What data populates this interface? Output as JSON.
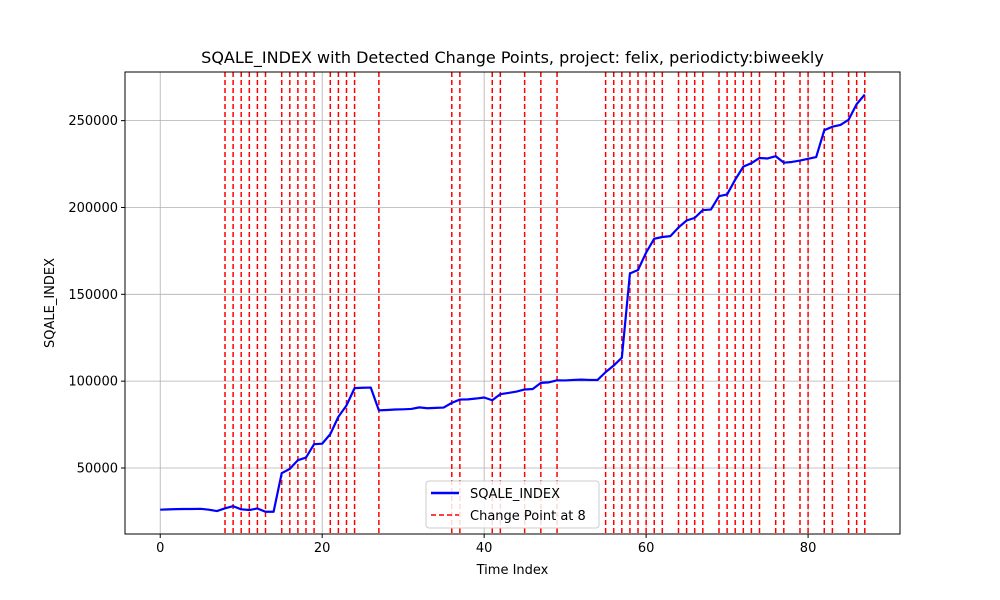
{
  "chart_data": {
    "type": "line",
    "title": "SQALE_INDEX with Detected Change Points, project: felix, periodicty:biweekly",
    "xlabel": "Time Index",
    "ylabel": "SQALE_INDEX",
    "xlim": [
      -4.35,
      91.35
    ],
    "ylim": [
      12000,
      278000
    ],
    "xticks": [
      0,
      20,
      40,
      60,
      80
    ],
    "yticks": [
      50000,
      100000,
      150000,
      200000,
      250000
    ],
    "grid": true,
    "legend_position": "lower-center",
    "series": [
      {
        "name": "SQALE_INDEX",
        "color": "#0000ff",
        "x": [
          0,
          1,
          2,
          3,
          4,
          5,
          6,
          7,
          8,
          9,
          10,
          11,
          12,
          13,
          14,
          15,
          16,
          17,
          18,
          19,
          20,
          21,
          22,
          23,
          24,
          25,
          26,
          27,
          28,
          29,
          30,
          31,
          32,
          33,
          34,
          35,
          36,
          37,
          38,
          39,
          40,
          41,
          42,
          43,
          44,
          45,
          46,
          47,
          48,
          49,
          50,
          51,
          52,
          53,
          54,
          55,
          56,
          57,
          58,
          59,
          60,
          61,
          62,
          63,
          64,
          65,
          66,
          67,
          68,
          69,
          70,
          71,
          72,
          73,
          74,
          75,
          76,
          77,
          78,
          79,
          80,
          81,
          82,
          83,
          84,
          85,
          86,
          87
        ],
        "y": [
          26000,
          26200,
          26300,
          26400,
          26400,
          26500,
          26000,
          25200,
          26800,
          28000,
          26200,
          25800,
          26700,
          24800,
          24800,
          47000,
          49500,
          54500,
          56000,
          63700,
          64000,
          69500,
          79500,
          86000,
          96000,
          96200,
          96300,
          83200,
          83400,
          83700,
          83800,
          84000,
          84900,
          84400,
          84600,
          84800,
          87500,
          89400,
          89500,
          90000,
          90600,
          89000,
          92500,
          93200,
          94000,
          95200,
          95500,
          99000,
          99300,
          100500,
          100400,
          100700,
          100900,
          100700,
          100700,
          105200,
          109000,
          113500,
          162000,
          164000,
          174000,
          182000,
          183000,
          183500,
          188500,
          192500,
          194000,
          198500,
          198800,
          206500,
          207500,
          216000,
          223500,
          225500,
          228500,
          228200,
          229500,
          225800,
          226200,
          227000,
          228000,
          229000,
          244500,
          246500,
          247500,
          250500,
          259500,
          265000
        ]
      }
    ],
    "change_points": {
      "name": "Change Point at 8",
      "color": "#ff0000",
      "x": [
        8,
        9,
        10,
        11,
        12,
        13,
        15,
        16,
        17,
        18,
        19,
        21,
        22,
        23,
        24,
        27,
        36,
        37,
        41,
        42,
        45,
        47,
        49,
        55,
        56,
        57,
        58,
        59,
        60,
        61,
        62,
        64,
        65,
        66,
        67,
        69,
        70,
        71,
        72,
        73,
        74,
        76,
        77,
        79,
        80,
        82,
        83,
        85,
        86,
        87
      ]
    }
  }
}
